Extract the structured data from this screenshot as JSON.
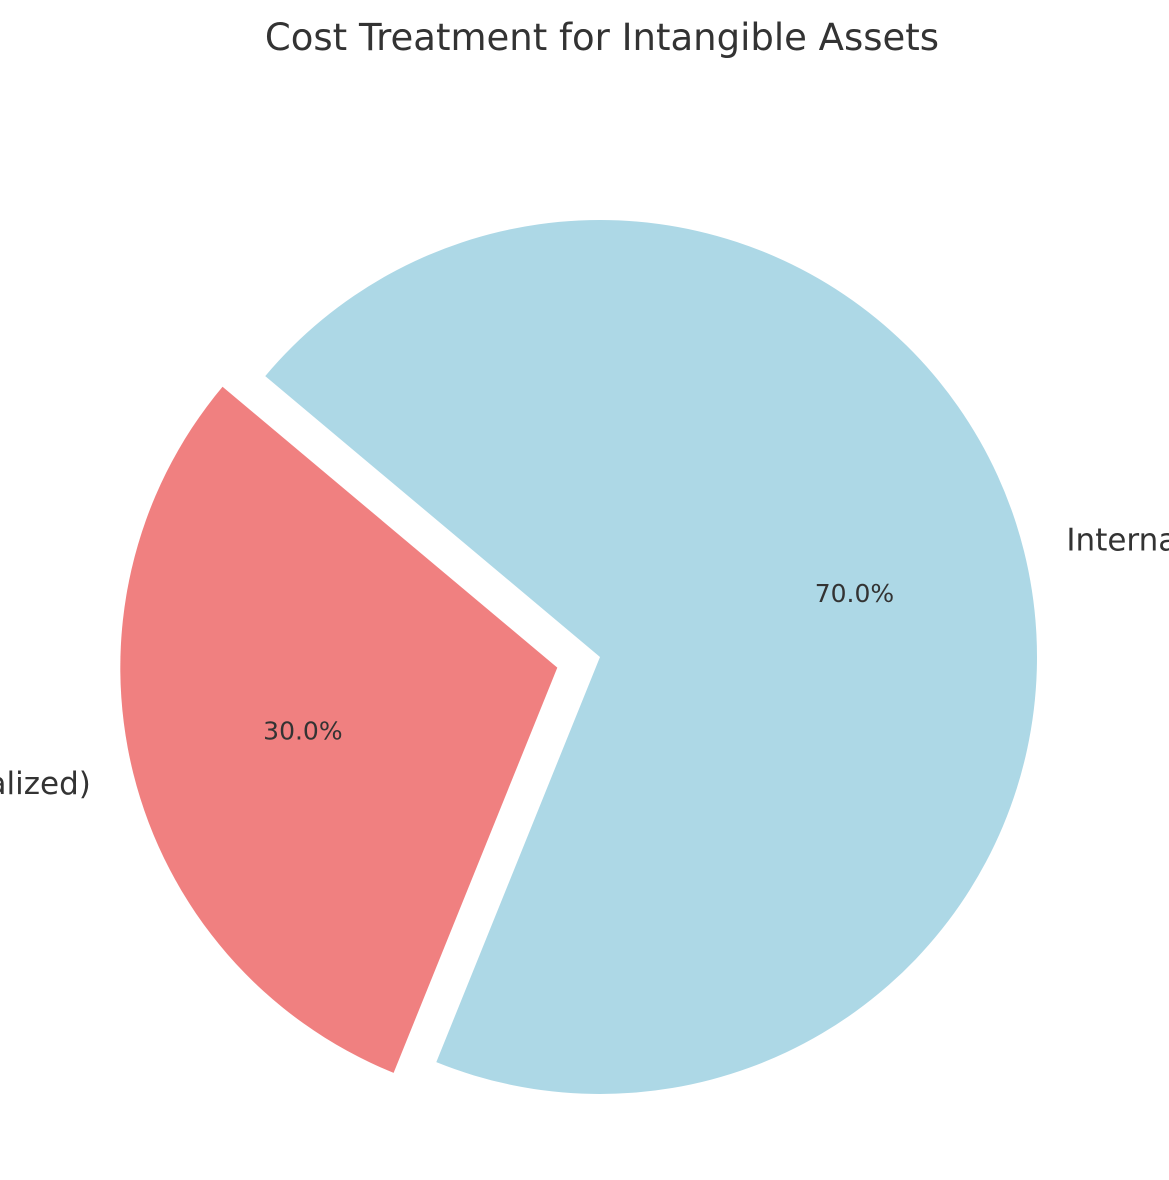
{
  "chart_data": {
    "type": "pie",
    "title": "Cost Treatment for Intangible Assets",
    "slices": [
      {
        "label": "Purchased (Capitalized)",
        "value": 30.0,
        "pct_label": "30.0%",
        "color": "#f08080",
        "exploded": true
      },
      {
        "label": "Internally Developed (Expensed)",
        "value": 70.0,
        "pct_label": "70.0%",
        "color": "#add8e6",
        "exploded": false
      }
    ],
    "start_angle_deg": 140,
    "legend": "none"
  }
}
